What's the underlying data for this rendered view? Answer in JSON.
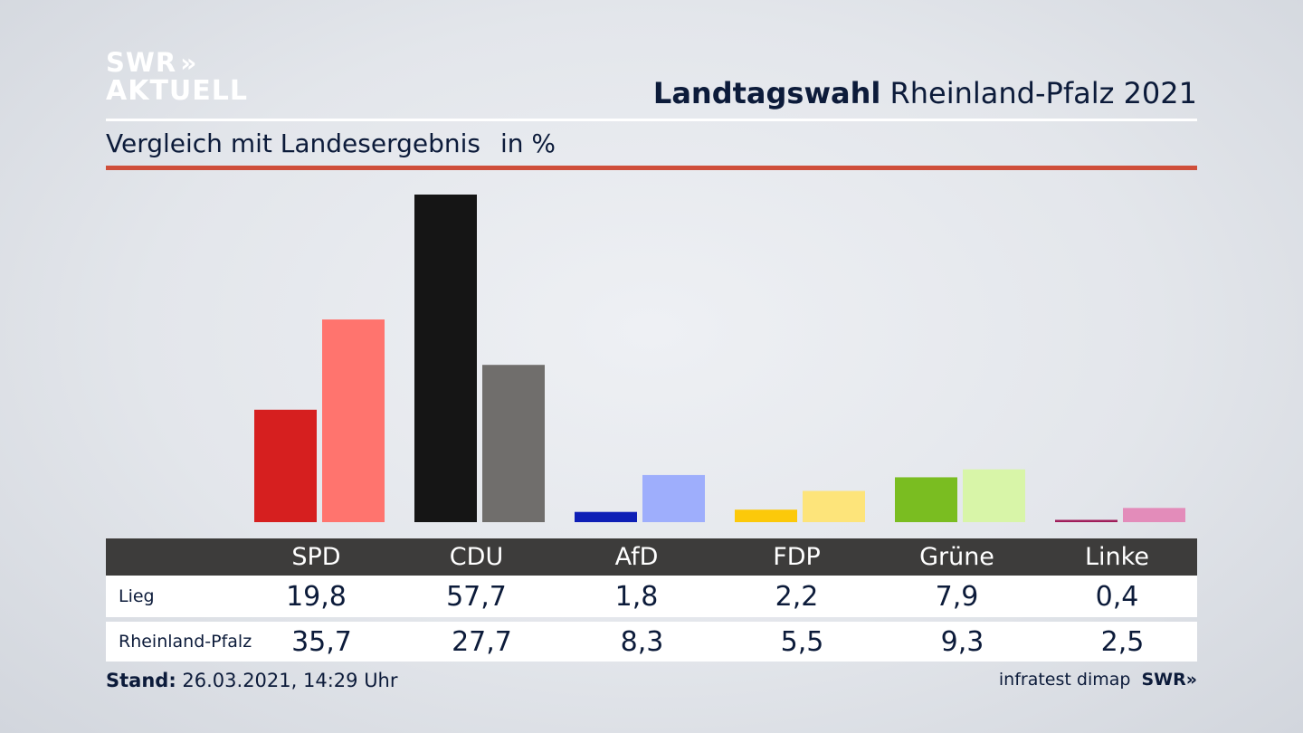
{
  "brand": {
    "logo_line1": "SWR",
    "logo_line2": "AKTUELL",
    "logo_chevrons": "»"
  },
  "header": {
    "title_bold": "Landtagswahl",
    "title_rest": "Rheinland-Pfalz 2021"
  },
  "subtitle": {
    "text": "Vergleich mit Landesergebnis",
    "unit": "in %"
  },
  "colors": {
    "accent_rule": "#cf4e3a",
    "table_header_bg": "#3d3c3b"
  },
  "chart_data": {
    "type": "bar",
    "categories": [
      "SPD",
      "CDU",
      "AfD",
      "FDP",
      "Grüne",
      "Linke"
    ],
    "series": [
      {
        "name": "Lieg",
        "values": [
          19.8,
          57.7,
          1.8,
          2.2,
          7.9,
          0.4
        ],
        "colors": [
          "#d61f1f",
          "#151515",
          "#0e1fb6",
          "#fcc90a",
          "#7abd21",
          "#a01d5a"
        ]
      },
      {
        "name": "Rheinland-Pfalz",
        "values": [
          35.7,
          27.7,
          8.3,
          5.5,
          9.3,
          2.5
        ],
        "colors": [
          "#ff746e",
          "#706e6c",
          "#9eaefc",
          "#fde47a",
          "#d8f5a8",
          "#e38cba"
        ]
      }
    ],
    "value_labels": [
      [
        "19,8",
        "57,7",
        "1,8",
        "2,2",
        "7,9",
        "0,4"
      ],
      [
        "35,7",
        "27,7",
        "8,3",
        "5,5",
        "9,3",
        "2,5"
      ]
    ],
    "ylim": [
      0,
      57.7
    ],
    "grid": false,
    "legend": "table below chart"
  },
  "footer": {
    "stand_label": "Stand:",
    "stand_value": "26.03.2021, 14:29 Uhr",
    "source": "infratest dimap",
    "swr": "SWR"
  }
}
